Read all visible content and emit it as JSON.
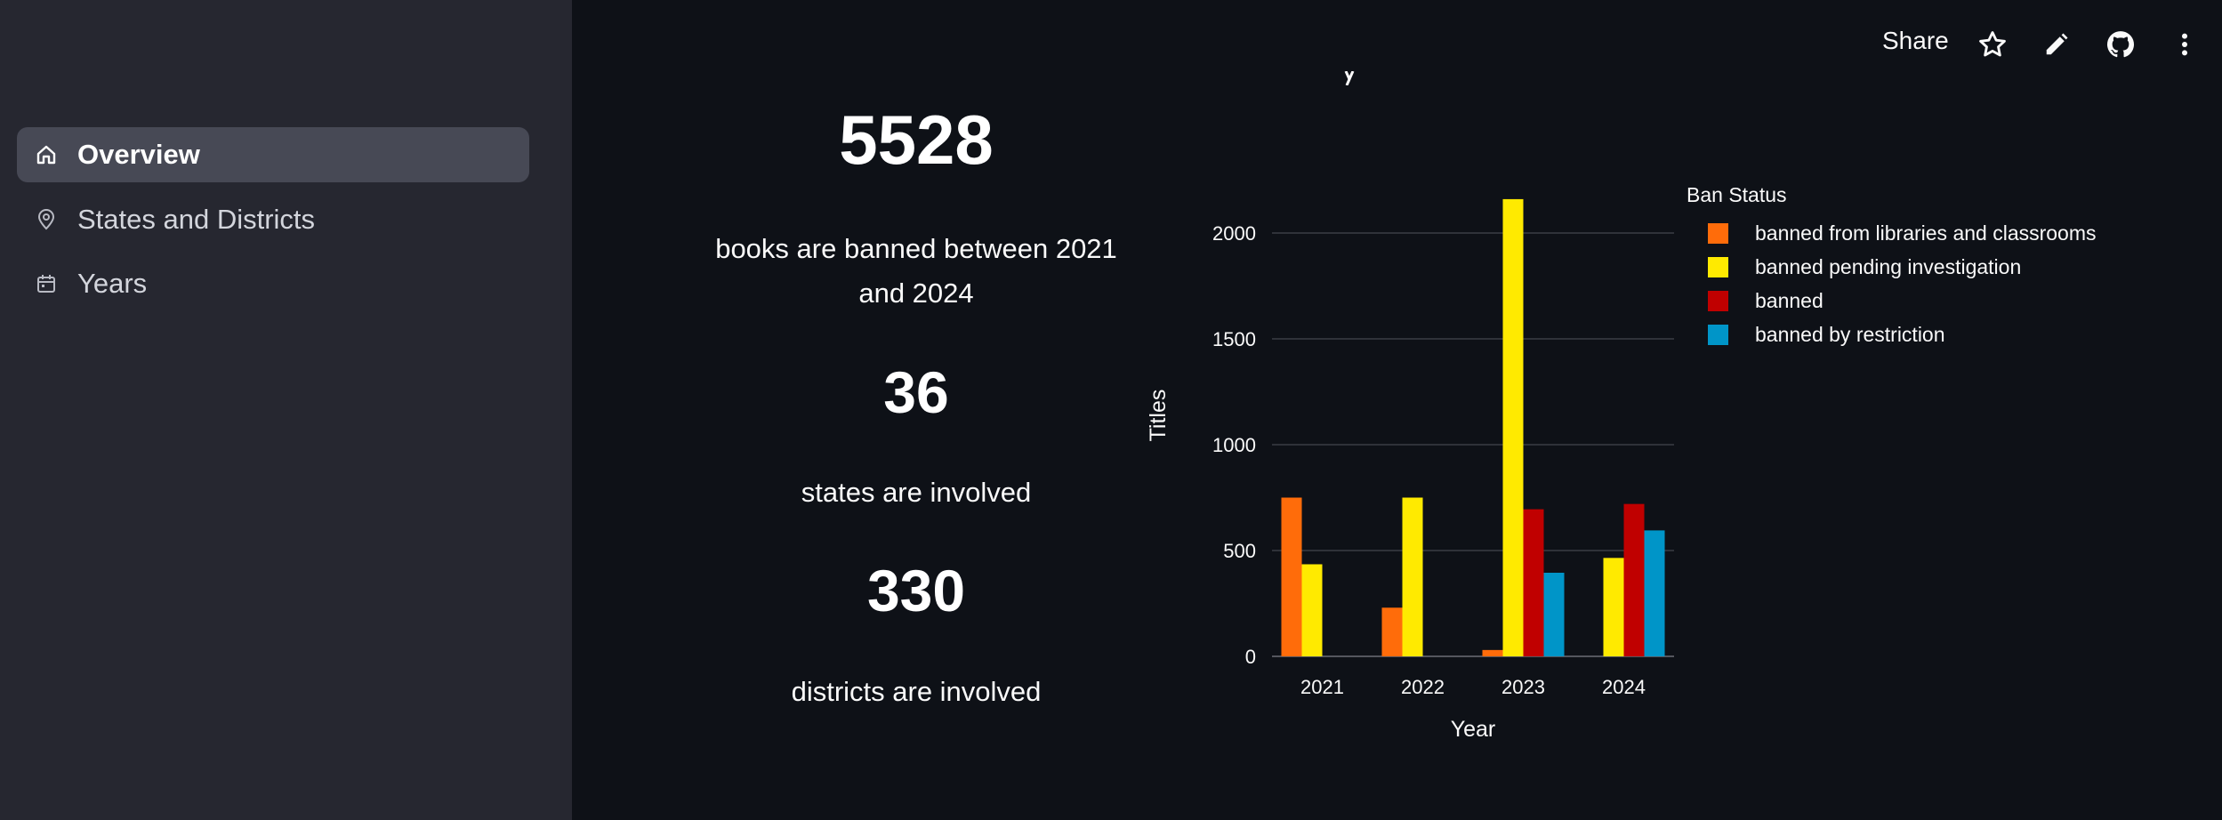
{
  "sidebar": {
    "items": [
      {
        "label": "Overview",
        "icon": "home-icon",
        "active": true
      },
      {
        "label": "States and Districts",
        "icon": "location-pin-icon",
        "active": false
      },
      {
        "label": "Years",
        "icon": "calendar-icon",
        "active": false
      }
    ]
  },
  "toolbar": {
    "share_label": "Share",
    "icons": [
      "star-icon",
      "pencil-icon",
      "github-icon",
      "more-vertical-icon"
    ]
  },
  "metrics": [
    {
      "value": "5528",
      "label_line1": "books are banned between 2021",
      "label_line2": "and 2024"
    },
    {
      "value": "36",
      "label_line1": "states are involved"
    },
    {
      "value": "330",
      "label_line1": "districts are involved"
    }
  ],
  "chart_data": {
    "type": "bar",
    "title": "",
    "xlabel": "Year",
    "ylabel": "Titles",
    "categories": [
      "2021",
      "2022",
      "2023",
      "2024"
    ],
    "ylim": [
      0,
      2150
    ],
    "yticks": [
      0,
      500,
      1000,
      1500,
      2000
    ],
    "grid": true,
    "legend_title": "Ban Status",
    "legend_position": "right",
    "series": [
      {
        "name": "banned from libraries and classrooms",
        "color": "#ff6c0a",
        "values": [
          750,
          230,
          30,
          0
        ]
      },
      {
        "name": "banned pending investigation",
        "color": "#ffea00",
        "values": [
          435,
          750,
          2160,
          465
        ]
      },
      {
        "name": "banned",
        "color": "#c00000",
        "values": [
          0,
          0,
          695,
          720
        ]
      },
      {
        "name": "banned by restriction",
        "color": "#0095c8",
        "values": [
          0,
          0,
          395,
          595
        ]
      }
    ]
  },
  "colors": {
    "background": "#0e1117",
    "sidebar": "#262730",
    "active_item": "#474955"
  }
}
